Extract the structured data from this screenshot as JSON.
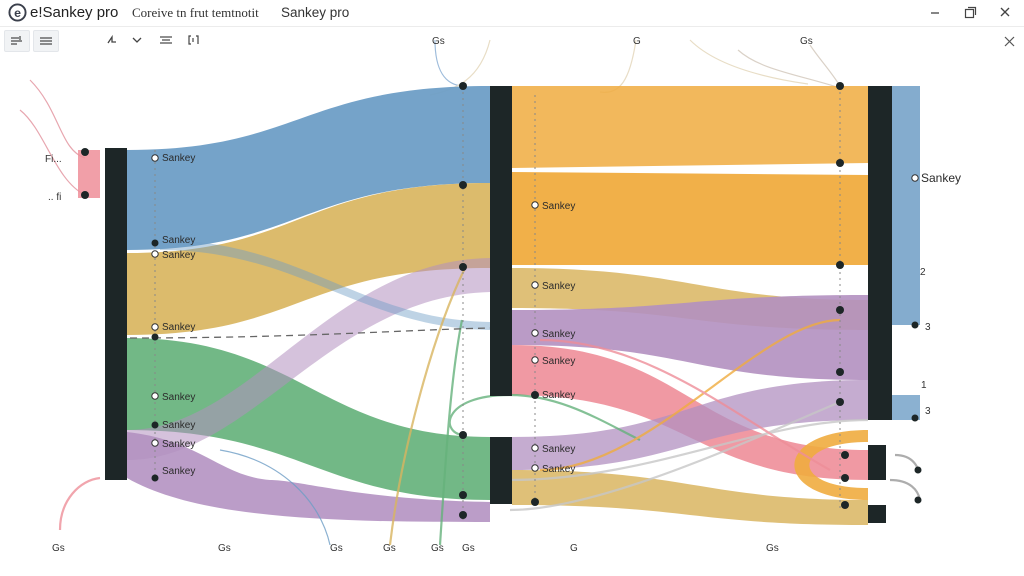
{
  "titlebar": {
    "app_name": "e!Sankey pro",
    "document_name": "Coreive tn frut temtnotit",
    "view_name": "Sankey pro"
  },
  "toolbar": {
    "buttons": [
      "layout-icon",
      "list-icon",
      "hand-icon",
      "chevron-down-icon",
      "align-icon",
      "bracket-icon"
    ]
  },
  "colors": {
    "blue": "#6e9ec6",
    "gold": "#d9b560",
    "orange": "#f0ac3f",
    "green": "#66b27c",
    "purple": "#b290c0",
    "pink": "#ee8e99",
    "node": "#1d2627"
  },
  "labels": {
    "left_top": "Fi...",
    "left_bottom": ".. fi",
    "column1": [
      "Sankey",
      "Sankey",
      "Sankey",
      "Sankey",
      "Sankey",
      "Sankey",
      "Sankey",
      "Sankey"
    ],
    "column2": [
      "Sankey",
      "Sankey",
      "Sankey",
      "Sankey",
      "Sankey",
      "Sankey",
      "Sankey"
    ],
    "right": "Sankey",
    "right_numbers": [
      "2",
      "1",
      "3",
      "3"
    ],
    "bottom_ticks": [
      "Gs",
      "Gs",
      "Gs",
      "Gs",
      "Gs",
      "Gs",
      "G",
      "Gs"
    ],
    "top_ticks": [
      "Gs",
      "G",
      "Gs"
    ]
  }
}
